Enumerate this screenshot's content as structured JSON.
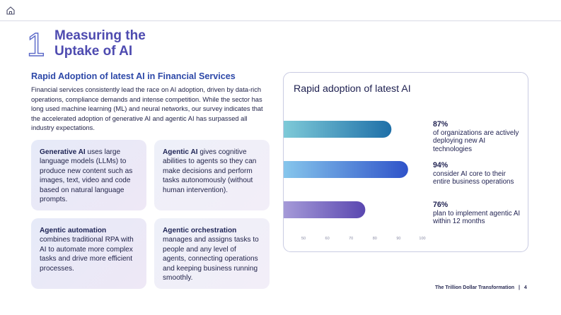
{
  "header": {
    "section_number": "1",
    "title_line1": "Measuring the",
    "title_line2": "Uptake of AI"
  },
  "subheading": "Rapid Adoption of latest AI in Financial Services",
  "intro": "Financial services consistently lead the race on AI adoption, driven by data-rich operations, compliance demands and intense competition. While the sector has long used machine learning (ML) and neural networks, our survey indicates that the accelerated adoption of generative AI and agentic AI has surpassed all industry expectations.",
  "cards": [
    {
      "term": "Generative AI",
      "text": " uses large language models (LLMs) to produce new content such as images, text, video and code based on natural language prompts."
    },
    {
      "term": "Agentic AI",
      "text": " gives cognitive abilities to agents so they can make decisions and perform tasks autonomously (without human intervention)."
    },
    {
      "term": "Agentic automation",
      "text": " combines traditional RPA with AI to automate more complex tasks and drive more efficient processes."
    },
    {
      "term": "Agentic orchestration",
      "text": " manages and assigns tasks to people and any level of agents, connecting operations and keeping business running smoothly."
    }
  ],
  "chart_data": {
    "type": "bar",
    "orientation": "horizontal",
    "title": "Rapid adoption of latest AI",
    "categories": [
      "of organizations are actively deploying new AI technologies",
      "consider AI core to their entire business operations",
      "plan to implement agentic AI within 12 months"
    ],
    "values": [
      87,
      94,
      76
    ],
    "value_labels": [
      "87%",
      "94%",
      "76%"
    ],
    "x_ticks": [
      50,
      60,
      70,
      80,
      90,
      100
    ],
    "xlim": [
      50,
      100
    ],
    "bar_colors": [
      [
        "#7ecad8",
        "#1e6fa8"
      ],
      [
        "#86c6ec",
        "#2f53c9"
      ],
      [
        "#a59ad8",
        "#5a47b0"
      ]
    ]
  },
  "footer": {
    "doc_title": "The Trillion Dollar Transformation",
    "separator": "|",
    "page": "4"
  },
  "colors": {
    "accent": "#4e4bb0",
    "subhead": "#2d48a8",
    "panel_border": "#c9cbe2"
  }
}
